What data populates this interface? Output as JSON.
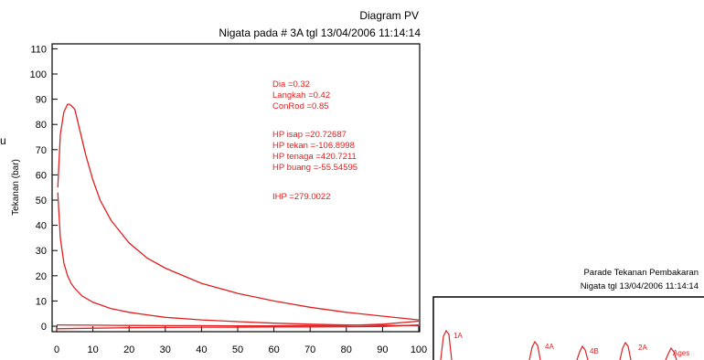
{
  "chart_data": [
    {
      "type": "line",
      "title": "Diagram PV",
      "subtitle": "Nigata pada # 3A tgl 13/04/2006 11:14:14",
      "xlabel": "",
      "ylabel": "Tekanan (bar)",
      "xlim": [
        0,
        100
      ],
      "ylim": [
        -2,
        110
      ],
      "x_ticks": [
        "0",
        "10",
        "20",
        "30",
        "40",
        "50",
        "60",
        "70",
        "80",
        "90",
        "100"
      ],
      "y_ticks": [
        "0",
        "10",
        "20",
        "30",
        "40",
        "50",
        "60",
        "70",
        "80",
        "90",
        "100",
        "110"
      ],
      "grid": false,
      "annotations": [
        "Dia =0.32",
        "Langkah =0.42",
        "ConRod =0.85",
        "HP isap =20.72687",
        "HP tekan =-106.8998",
        "HP tenaga =420.7211",
        "HP buang =-55.54595",
        "IHP =279.0022"
      ],
      "series": [
        {
          "x": [
            0.3,
            1,
            2,
            3,
            3.5,
            4,
            5,
            6,
            8,
            10,
            12,
            15,
            20,
            25,
            30,
            40,
            50,
            60,
            70,
            80,
            90,
            100
          ],
          "values": [
            55,
            76,
            85,
            88,
            88,
            87.5,
            86,
            80,
            68,
            58,
            50,
            42,
            33,
            27,
            23,
            17,
            13,
            10,
            7.5,
            5.5,
            4,
            2.5
          ]
        },
        {
          "x": [
            0.3,
            1,
            2,
            3,
            4,
            5,
            7,
            10,
            15,
            20,
            25,
            30,
            40,
            50,
            60,
            70,
            80,
            90,
            100
          ],
          "values": [
            53,
            35,
            25,
            20,
            17,
            15,
            12,
            9.5,
            7,
            5.5,
            4.5,
            3.5,
            2.5,
            1.8,
            1.2,
            0.8,
            0.5,
            0.3,
            0.2
          ]
        },
        {
          "x": [
            0,
            10,
            20,
            30,
            40,
            50,
            60,
            70,
            80,
            90,
            100
          ],
          "values": [
            0.5,
            0.4,
            0.3,
            0.2,
            0.2,
            0.1,
            0.1,
            0.2,
            0.3,
            0.8,
            2
          ]
        },
        {
          "x": [
            0,
            10,
            20,
            30,
            40,
            50,
            60,
            70,
            80,
            90,
            100
          ],
          "values": [
            -1,
            -0.8,
            -0.6,
            -0.5,
            -0.4,
            -0.4,
            -0.3,
            -0.3,
            -0.2,
            -0.1,
            0.5
          ]
        }
      ]
    },
    {
      "type": "line",
      "title": "Parade Tekanan Pembakaran",
      "subtitle": "Nigata tgl 13/04/2006 11:14:14",
      "cylinder_labels": [
        "1A",
        "4A",
        "4B",
        "2A",
        "Ages"
      ]
    }
  ]
}
